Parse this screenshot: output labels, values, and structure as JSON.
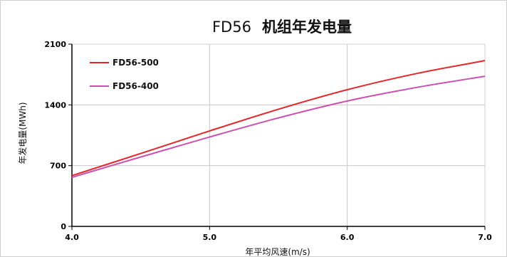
{
  "chart_data": {
    "type": "line",
    "title_prefix": "FD56",
    "title_suffix": "机组年发电量",
    "xlabel": "年平均风速(m/s)",
    "ylabel": "年发电量(MWh)",
    "xlim": [
      4.0,
      7.0
    ],
    "ylim": [
      0,
      2100
    ],
    "xticks": [
      "4.0",
      "5.0",
      "6.0",
      "7.0"
    ],
    "xtick_values": [
      4.0,
      5.0,
      6.0,
      7.0
    ],
    "yticks": [
      "0",
      "700",
      "1400",
      "2100"
    ],
    "ytick_values": [
      0,
      700,
      1400,
      2100
    ],
    "grid": true,
    "legend_position": "top-left",
    "x": [
      4.0,
      4.5,
      5.0,
      5.5,
      6.0,
      6.5,
      7.0
    ],
    "series": [
      {
        "name": "FD56-500",
        "color": "#e8262a",
        "values": [
          585,
          840,
          1100,
          1350,
          1575,
          1760,
          1910
        ]
      },
      {
        "name": "FD56-400",
        "color": "#cf4fb0",
        "values": [
          565,
          800,
          1030,
          1250,
          1445,
          1600,
          1730
        ]
      }
    ]
  }
}
